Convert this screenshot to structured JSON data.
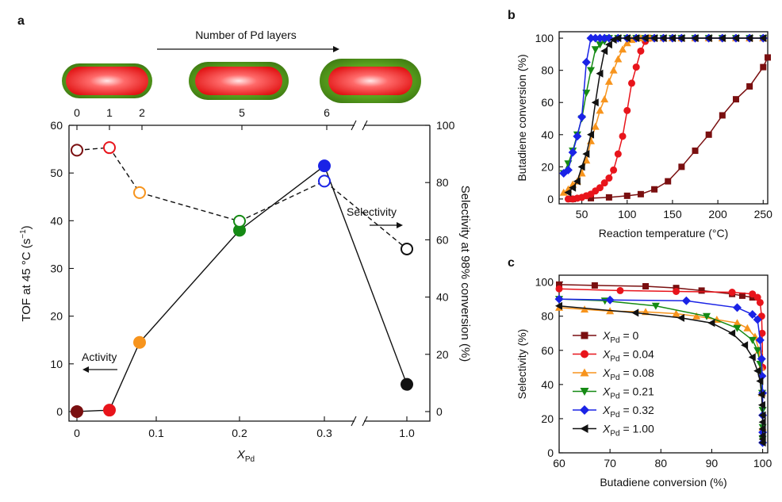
{
  "panels": {
    "a": "a",
    "b": "b",
    "c": "c"
  },
  "colors": {
    "x0": "#7a0f10",
    "x004": "#e8141b",
    "x008": "#f7941d",
    "x021": "#158a14",
    "x032": "#1a23e6",
    "x100": "#111111",
    "shell": "#5aa51e",
    "core": "#e8141b"
  },
  "chart_data": [
    {
      "id": "a",
      "type": "scatter",
      "title": "Number of Pd layers",
      "xlabel_main": "X",
      "xlabel_sub": "Pd",
      "ylabel_left_pre": "TOF at 45 °C (s",
      "ylabel_left_sup": "−1",
      "ylabel_left_post": ")",
      "ylabel_right": "Selectivity at 98% conversion (%)",
      "x_tick_labels": [
        "0",
        "0.1",
        "0.2",
        "0.3",
        "1.0"
      ],
      "top_tick_labels": [
        "0",
        "1",
        "2",
        "5",
        "6"
      ],
      "y_left_ticks": [
        "0",
        "10",
        "20",
        "30",
        "40",
        "50",
        "60"
      ],
      "y_left_lim": [
        -2,
        60
      ],
      "y_right_ticks": [
        "0",
        "20",
        "40",
        "60",
        "80",
        "100"
      ],
      "y_right_lim": [
        -3.33,
        100
      ],
      "x_broken_axis": true,
      "annotations": {
        "activity": "Activity",
        "selectivity": "Selectivity"
      },
      "categories": [
        "0",
        "0.04",
        "0.08",
        "0.21",
        "0.32",
        "1.00"
      ],
      "series": [
        {
          "name": "Activity (TOF)",
          "axis": "left",
          "values": [
            0,
            0.3,
            14.5,
            38,
            51.5,
            5.7
          ]
        },
        {
          "name": "Selectivity",
          "axis": "right",
          "values": [
            91.3,
            92.2,
            76.5,
            66.5,
            80.5,
            56.8
          ]
        }
      ]
    },
    {
      "id": "b",
      "type": "line",
      "xlabel": "Reaction temperature (°C)",
      "ylabel": "Butadiene conversion (%)",
      "xlim": [
        25,
        255
      ],
      "ylim": [
        -3,
        104
      ],
      "x_ticks": [
        "50",
        "100",
        "150",
        "200",
        "250"
      ],
      "y_ticks": [
        "0",
        "20",
        "40",
        "60",
        "80",
        "100"
      ],
      "series": [
        {
          "name": "X_Pd = 0",
          "marker": "square",
          "x": [
            40,
            60,
            80,
            100,
            115,
            130,
            145,
            160,
            175,
            190,
            205,
            220,
            235,
            250,
            255
          ],
          "y": [
            0,
            0.5,
            1,
            2,
            3,
            6,
            11,
            20,
            30,
            40,
            52,
            62,
            70,
            82,
            88
          ]
        },
        {
          "name": "X_Pd = 0.04",
          "marker": "circle",
          "x": [
            35,
            40,
            45,
            50,
            55,
            60,
            65,
            70,
            75,
            80,
            85,
            90,
            95,
            100,
            105,
            110,
            115,
            120,
            125,
            130,
            140,
            150,
            160,
            175,
            190,
            205,
            220,
            235,
            250
          ],
          "y": [
            0,
            0,
            0.5,
            1,
            2,
            3,
            5,
            7,
            10,
            13,
            18,
            28,
            39,
            55,
            72,
            82,
            92,
            98,
            100,
            100,
            100,
            100,
            100,
            100,
            100,
            100,
            100,
            100,
            100
          ]
        },
        {
          "name": "X_Pd = 0.08",
          "marker": "triangle-up",
          "x": [
            30,
            35,
            40,
            45,
            50,
            55,
            60,
            65,
            70,
            75,
            80,
            85,
            90,
            95,
            100,
            105,
            110,
            115,
            120,
            125,
            130,
            140,
            150,
            160,
            175,
            190,
            205,
            220,
            235,
            250
          ],
          "y": [
            4,
            6,
            9,
            11,
            16,
            24,
            36,
            45,
            55,
            62,
            73,
            80,
            87,
            93,
            97,
            99,
            100,
            100,
            100,
            100,
            100,
            100,
            100,
            100,
            100,
            100,
            100,
            100,
            100,
            100
          ]
        },
        {
          "name": "X_Pd = 0.21",
          "marker": "triangle-down",
          "x": [
            30,
            35,
            40,
            45,
            50,
            55,
            60,
            65,
            70,
            75,
            80,
            90,
            100,
            110,
            120,
            130,
            140,
            150,
            160,
            175,
            190,
            205,
            220,
            235,
            250
          ],
          "y": [
            16,
            22,
            30,
            40,
            50,
            66,
            80,
            93,
            96,
            98,
            100,
            100,
            100,
            100,
            100,
            100,
            100,
            100,
            100,
            100,
            100,
            100,
            100,
            100,
            100
          ]
        },
        {
          "name": "X_Pd = 0.32",
          "marker": "diamond",
          "x": [
            30,
            35,
            40,
            45,
            50,
            55,
            60,
            65,
            70,
            75,
            80,
            90,
            100,
            110,
            120,
            130,
            140,
            150,
            160,
            175,
            190,
            205,
            220,
            235,
            250
          ],
          "y": [
            16,
            18,
            29,
            39,
            51,
            85,
            100,
            100,
            100,
            100,
            100,
            100,
            100,
            100,
            100,
            100,
            100,
            100,
            100,
            100,
            100,
            100,
            100,
            100,
            100
          ]
        },
        {
          "name": "X_Pd = 1.00",
          "marker": "triangle-left",
          "x": [
            35,
            40,
            45,
            50,
            55,
            60,
            65,
            70,
            75,
            80,
            85,
            90,
            100,
            110,
            120,
            130,
            140,
            150,
            160,
            175,
            190,
            205,
            220,
            235,
            250
          ],
          "y": [
            4,
            7,
            11,
            20,
            28,
            40,
            60,
            78,
            92,
            96,
            99,
            100,
            100,
            100,
            100,
            100,
            100,
            100,
            100,
            100,
            100,
            100,
            100,
            100,
            100
          ]
        }
      ]
    },
    {
      "id": "c",
      "type": "line",
      "xlabel": "Butadiene conversion (%)",
      "ylabel": "Selectivity (%)",
      "xlim": [
        60,
        101
      ],
      "ylim": [
        0,
        104
      ],
      "x_ticks": [
        "60",
        "70",
        "80",
        "90",
        "100"
      ],
      "y_ticks": [
        "0",
        "20",
        "40",
        "60",
        "80",
        "100"
      ],
      "legend_position": "middle-left",
      "legend": [
        {
          "main": "X",
          "sub": "Pd",
          "suffix": " = 0"
        },
        {
          "main": "X",
          "sub": "Pd",
          "suffix": " = 0.04"
        },
        {
          "main": "X",
          "sub": "Pd",
          "suffix": " = 0.08"
        },
        {
          "main": "X",
          "sub": "Pd",
          "suffix": " = 0.21"
        },
        {
          "main": "X",
          "sub": "Pd",
          "suffix": " = 0.32"
        },
        {
          "main": "X",
          "sub": "Pd",
          "suffix": " = 1.00"
        }
      ],
      "series": [
        {
          "name": "X_Pd = 0",
          "marker": "square",
          "x": [
            60,
            67,
            77,
            83,
            88,
            94,
            96,
            98
          ],
          "y": [
            98.5,
            98,
            97.5,
            96.5,
            95,
            93,
            92,
            91
          ]
        },
        {
          "name": "X_Pd = 0.04",
          "marker": "circle",
          "x": [
            60,
            72,
            83,
            94,
            98,
            99,
            99.5,
            99.8,
            99.9,
            100
          ],
          "y": [
            96,
            95,
            94.5,
            94,
            93,
            91,
            88,
            80,
            70,
            50
          ]
        },
        {
          "name": "X_Pd = 0.08",
          "marker": "triangle-up",
          "x": [
            60,
            65,
            70,
            77,
            83,
            87,
            91,
            95,
            97,
            98.5,
            99.3,
            99.7,
            99.9,
            100
          ],
          "y": [
            85,
            84,
            83,
            82.5,
            81.5,
            80,
            78,
            76,
            73,
            68,
            60,
            50,
            35,
            15
          ]
        },
        {
          "name": "X_Pd = 0.21",
          "marker": "triangle-down",
          "x": [
            60,
            69,
            79,
            89,
            95,
            98,
            99,
            99.5,
            99.8,
            99.9,
            100,
            100,
            100
          ],
          "y": [
            90,
            89,
            86,
            80,
            73,
            66,
            60,
            52,
            44,
            35,
            25,
            15,
            8
          ]
        },
        {
          "name": "X_Pd = 0.32",
          "marker": "diamond",
          "x": [
            60,
            70,
            85,
            95,
            98,
            99,
            99.5,
            99.8,
            99.9,
            100,
            100,
            100,
            100
          ],
          "y": [
            90,
            89.5,
            89,
            85,
            81,
            78,
            66,
            55,
            45,
            35,
            22,
            12,
            6
          ]
        },
        {
          "name": "X_Pd = 1.00",
          "marker": "triangle-left",
          "x": [
            60,
            75,
            84,
            90,
            94,
            96.5,
            98,
            99,
            99.5,
            99.8,
            99.9,
            100,
            100,
            100,
            100,
            100,
            100
          ],
          "y": [
            86,
            82,
            79,
            76,
            70,
            63,
            56,
            48,
            42,
            34,
            28,
            22,
            18,
            14,
            10,
            8,
            6
          ]
        }
      ]
    }
  ]
}
